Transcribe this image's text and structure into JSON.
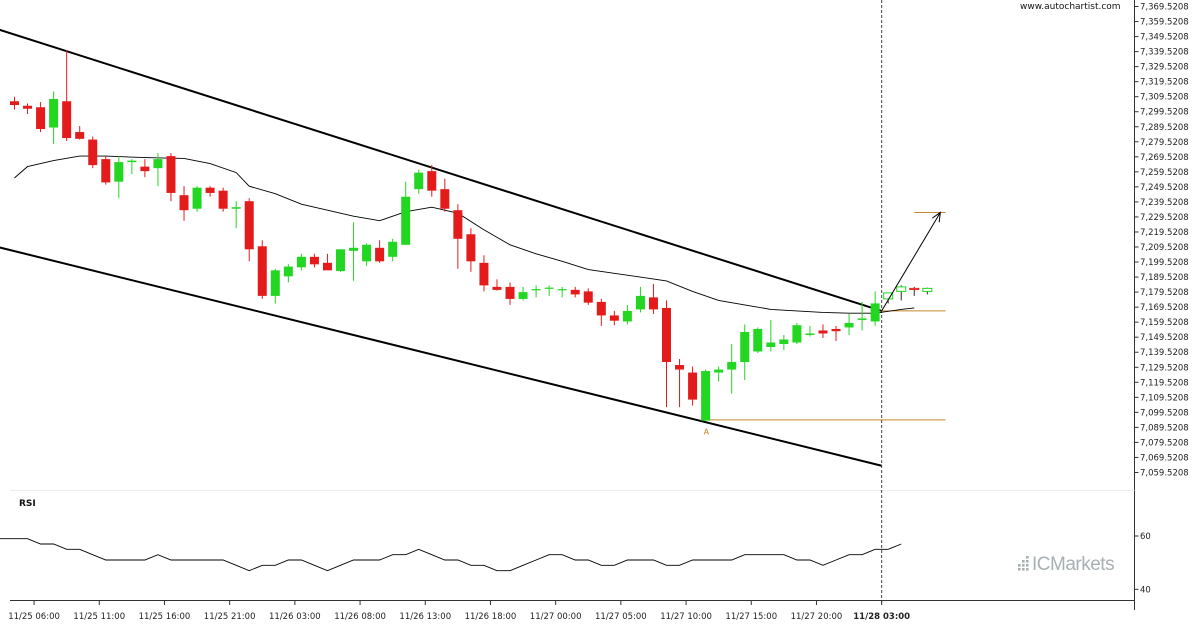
{
  "header": {
    "source": "www.autochartist.com"
  },
  "brand": {
    "name": "ICMarkets"
  },
  "colors": {
    "up": "#22d622",
    "down": "#e41b1b",
    "trend": "#000000",
    "level": "#c8862a",
    "ma": "#000000",
    "rsi": "#000000",
    "brand": "#a8b0b4"
  },
  "chart_data": {
    "type": "candlestick",
    "title": "",
    "ylim": [
      7052.5208,
      7372.5208
    ],
    "ytick_values": [
      7059.5208,
      7069.5208,
      7079.5208,
      7089.5208,
      7099.5208,
      7109.5208,
      7119.5208,
      7129.5208,
      7139.5208,
      7149.5208,
      7159.5208,
      7169.5208,
      7179.5208,
      7189.5208,
      7199.5208,
      7209.5208,
      7219.5208,
      7229.5208,
      7239.5208,
      7249.5208,
      7259.5208,
      7269.5208,
      7279.5208,
      7289.5208,
      7299.5208,
      7309.5208,
      7319.5208,
      7329.5208,
      7339.5208,
      7349.5208,
      7359.5208,
      7369.5208
    ],
    "ytick_labels": [
      "7,059.5208",
      "7,069.5208",
      "7,079.5208",
      "7,089.5208",
      "7,099.5208",
      "7,109.5208",
      "7,119.5208",
      "7,129.5208",
      "7,139.5208",
      "7,149.5208",
      "7,159.5208",
      "7,169.5208",
      "7,179.5208",
      "7,189.5208",
      "7,199.5208",
      "7,209.5208",
      "7,219.5208",
      "7,229.5208",
      "7,239.5208",
      "7,249.5208",
      "7,259.5208",
      "7,269.5208",
      "7,279.5208",
      "7,289.5208",
      "7,299.5208",
      "7,309.5208",
      "7,319.5208",
      "7,329.5208",
      "7,339.5208",
      "7,349.5208",
      "7,359.5208",
      "7,369.5208"
    ],
    "x_ticks": [
      {
        "bar": 1.5,
        "label": "11/25 06:00",
        "bold": false
      },
      {
        "bar": 6.5,
        "label": "11/25 11:00",
        "bold": false
      },
      {
        "bar": 11.5,
        "label": "11/25 16:00",
        "bold": false
      },
      {
        "bar": 16.5,
        "label": "11/25 21:00",
        "bold": false
      },
      {
        "bar": 21.5,
        "label": "11/26 03:00",
        "bold": false
      },
      {
        "bar": 26.5,
        "label": "11/26 08:00",
        "bold": false
      },
      {
        "bar": 31.5,
        "label": "11/26 13:00",
        "bold": false
      },
      {
        "bar": 36.5,
        "label": "11/26 18:00",
        "bold": false
      },
      {
        "bar": 41.5,
        "label": "11/27 00:00",
        "bold": false
      },
      {
        "bar": 46.5,
        "label": "11/27 05:00",
        "bold": false
      },
      {
        "bar": 51.5,
        "label": "11/27 10:00",
        "bold": false
      },
      {
        "bar": 56.5,
        "label": "11/27 15:00",
        "bold": false
      },
      {
        "bar": 61.5,
        "label": "11/27 20:00",
        "bold": false
      },
      {
        "bar": 66.5,
        "label": "11/28 03:00",
        "bold": true
      }
    ],
    "candles": [
      [
        7306.5,
        7309.5,
        7301.0,
        7304.0
      ],
      [
        7303.5,
        7305.0,
        7298.0,
        7301.5
      ],
      [
        7302.5,
        7306.0,
        7286.0,
        7288.0
      ],
      [
        7289.0,
        7313.0,
        7278.0,
        7308.0
      ],
      [
        7306.5,
        7340.5,
        7280.0,
        7282.0
      ],
      [
        7286.0,
        7290.0,
        7281.0,
        7281.5
      ],
      [
        7281.0,
        7283.0,
        7262.0,
        7264.0
      ],
      [
        7268.0,
        7270.0,
        7251.0,
        7252.5
      ],
      [
        7253.0,
        7270.0,
        7242.0,
        7266.0
      ],
      [
        7266.0,
        7268.0,
        7258.0,
        7267.0
      ],
      [
        7263.0,
        7268.0,
        7256.0,
        7260.0
      ],
      [
        7262.0,
        7272.0,
        7250.0,
        7268.0
      ],
      [
        7270.0,
        7272.0,
        7240.0,
        7245.5
      ],
      [
        7244.0,
        7250.0,
        7227.0,
        7234.0
      ],
      [
        7235.0,
        7250.0,
        7233.0,
        7249.0
      ],
      [
        7249.0,
        7250.0,
        7243.0,
        7245.5
      ],
      [
        7247.0,
        7249.0,
        7233.0,
        7235.0
      ],
      [
        7235.0,
        7240.0,
        7222.0,
        7236.0
      ],
      [
        7240.0,
        7242.0,
        7200.0,
        7208.0
      ],
      [
        7210.0,
        7214.0,
        7175.0,
        7177.0
      ],
      [
        7177.0,
        7195.0,
        7172.0,
        7194.0
      ],
      [
        7190.0,
        7198.0,
        7186.0,
        7196.5
      ],
      [
        7196.0,
        7205.0,
        7194.0,
        7203.0
      ],
      [
        7203.0,
        7205.0,
        7196.0,
        7198.0
      ],
      [
        7199.0,
        7205.0,
        7195.0,
        7194.0
      ],
      [
        7193.5,
        7208.0,
        7193.0,
        7208.0
      ],
      [
        7207.0,
        7226.0,
        7187.0,
        7209.0
      ],
      [
        7200.0,
        7212.0,
        7197.0,
        7211.0
      ],
      [
        7209.0,
        7214.0,
        7199.0,
        7200.0
      ],
      [
        7203.0,
        7215.0,
        7200.0,
        7213.0
      ],
      [
        7211.0,
        7253.0,
        7211.0,
        7243.0
      ],
      [
        7248.0,
        7261.0,
        7245.0,
        7259.0
      ],
      [
        7260.0,
        7264.0,
        7243.0,
        7247.0
      ],
      [
        7248.0,
        7255.0,
        7233.0,
        7235.0
      ],
      [
        7234.0,
        7238.0,
        7195.0,
        7215.0
      ],
      [
        7218.0,
        7222.0,
        7193.0,
        7200.0
      ],
      [
        7199.0,
        7204.0,
        7180.0,
        7184.0
      ],
      [
        7183.0,
        7188.0,
        7180.5,
        7181.0
      ],
      [
        7183.0,
        7186.0,
        7171.0,
        7175.0
      ],
      [
        7175.0,
        7183.0,
        7174.0,
        7179.5
      ],
      [
        7181.0,
        7184.0,
        7176.0,
        7181.5
      ],
      [
        7182.0,
        7184.0,
        7177.0,
        7182.5
      ],
      [
        7181.0,
        7183.0,
        7176.0,
        7181.5
      ],
      [
        7181.0,
        7183.0,
        7176.0,
        7178.0
      ],
      [
        7180.0,
        7182.0,
        7171.0,
        7172.5
      ],
      [
        7173.0,
        7175.0,
        7157.0,
        7164.0
      ],
      [
        7164.0,
        7167.0,
        7157.5,
        7160.5
      ],
      [
        7160.0,
        7171.0,
        7158.0,
        7167.0
      ],
      [
        7168.0,
        7183.0,
        7166.0,
        7177.0
      ],
      [
        7176.0,
        7185.0,
        7165.0,
        7168.0
      ],
      [
        7169.0,
        7174.0,
        7103.0,
        7133.0
      ],
      [
        7131.0,
        7135.0,
        7103.0,
        7128.0
      ],
      [
        7126.0,
        7130.0,
        7104.0,
        7108.0
      ],
      [
        7094.0,
        7128.0,
        7094.0,
        7127.0
      ],
      [
        7126.0,
        7130.0,
        7120.0,
        7128.0
      ],
      [
        7128.0,
        7145.0,
        7112.0,
        7133.0
      ],
      [
        7133.0,
        7158.0,
        7121.0,
        7153.0
      ],
      [
        7140.0,
        7156.0,
        7139.0,
        7155.0
      ],
      [
        7143.0,
        7161.0,
        7140.0,
        7146.0
      ],
      [
        7145.0,
        7151.0,
        7141.0,
        7148.0
      ],
      [
        7146.0,
        7159.0,
        7145.0,
        7157.5
      ],
      [
        7151.0,
        7157.0,
        7150.0,
        7152.0
      ],
      [
        7154.0,
        7158.0,
        7149.0,
        7152.0
      ],
      [
        7155.0,
        7157.0,
        7147.0,
        7153.5
      ],
      [
        7156.0,
        7165.0,
        7151.0,
        7159.0
      ],
      [
        7161.0,
        7173.0,
        7154.0,
        7162.0
      ],
      [
        7160.0,
        7180.0,
        7157.0,
        7172.0
      ],
      [
        7175.0,
        7178.0,
        7172.0,
        7179.0
      ],
      [
        7180.0,
        7184.0,
        7174.0,
        7183.0
      ],
      [
        7182.0,
        7183.0,
        7177.0,
        7181.5
      ],
      [
        7180.0,
        7182.5,
        7178.0,
        7182.0
      ]
    ],
    "forecast_from": 67,
    "ma": [
      [
        0,
        7255.5
      ],
      [
        1,
        7263
      ],
      [
        3,
        7267
      ],
      [
        5,
        7270
      ],
      [
        7,
        7270
      ],
      [
        10,
        7269
      ],
      [
        13,
        7268.5
      ],
      [
        15,
        7265
      ],
      [
        17,
        7259
      ],
      [
        18,
        7250
      ],
      [
        20,
        7245
      ],
      [
        22,
        7238
      ],
      [
        24,
        7234
      ],
      [
        26,
        7230
      ],
      [
        28,
        7227
      ],
      [
        30,
        7233
      ],
      [
        32,
        7236
      ],
      [
        34,
        7232
      ],
      [
        36,
        7221
      ],
      [
        38,
        7211
      ],
      [
        40,
        7205
      ],
      [
        42,
        7200
      ],
      [
        44,
        7194.5
      ],
      [
        46,
        7192
      ],
      [
        48,
        7189.5
      ],
      [
        50,
        7187
      ],
      [
        52,
        7180
      ],
      [
        54,
        7174
      ],
      [
        56,
        7171
      ],
      [
        58,
        7168
      ],
      [
        60,
        7167
      ],
      [
        62,
        7166
      ],
      [
        64,
        7165.5
      ],
      [
        66,
        7165.5
      ],
      [
        68,
        7168
      ],
      [
        69,
        7169
      ]
    ],
    "trend_lines": [
      {
        "from": [
          -1.5,
          7355
        ],
        "to": [
          66.5,
          7167
        ],
        "name": "upper"
      },
      {
        "from": [
          -1.5,
          7210
        ],
        "to": [
          66.5,
          7064
        ],
        "name": "lower"
      }
    ],
    "levels": [
      {
        "value": 7094.5,
        "from": 53.2,
        "to": 71.4
      },
      {
        "value": 7167.0,
        "from": 66.5,
        "to": 71.4
      },
      {
        "value": 7232.5,
        "from": 69.0,
        "to": 71.4
      }
    ],
    "arrow": {
      "from": [
        66.5,
        7167.0
      ],
      "to": [
        71.0,
        7232.5
      ]
    },
    "point_marker": {
      "label": "A",
      "bar": 53,
      "value": 7094.0
    },
    "vertical_line_bar": 66.5,
    "rsi": {
      "title": "RSI",
      "levels": [
        60,
        40
      ],
      "level_labels": [
        "60",
        "40"
      ],
      "ylim": [
        36,
        66
      ],
      "points": [
        [
          -1.5,
          59
        ],
        [
          0,
          59
        ],
        [
          1,
          59
        ],
        [
          2,
          57
        ],
        [
          3,
          57
        ],
        [
          4,
          55
        ],
        [
          5,
          55
        ],
        [
          6,
          53
        ],
        [
          7,
          51
        ],
        [
          8,
          51
        ],
        [
          9,
          51
        ],
        [
          10,
          51
        ],
        [
          11,
          53
        ],
        [
          12,
          51
        ],
        [
          13,
          51
        ],
        [
          14,
          51
        ],
        [
          15,
          51
        ],
        [
          16,
          51
        ],
        [
          17,
          49
        ],
        [
          18,
          47
        ],
        [
          19,
          49
        ],
        [
          20,
          49
        ],
        [
          21,
          51
        ],
        [
          22,
          51
        ],
        [
          23,
          49
        ],
        [
          24,
          47
        ],
        [
          25,
          49
        ],
        [
          26,
          51
        ],
        [
          27,
          51
        ],
        [
          28,
          51
        ],
        [
          29,
          53
        ],
        [
          30,
          53
        ],
        [
          31,
          55
        ],
        [
          32,
          53
        ],
        [
          33,
          51
        ],
        [
          34,
          51
        ],
        [
          35,
          49
        ],
        [
          36,
          49
        ],
        [
          37,
          47
        ],
        [
          38,
          47
        ],
        [
          39,
          49
        ],
        [
          40,
          51
        ],
        [
          41,
          53
        ],
        [
          42,
          53
        ],
        [
          43,
          51
        ],
        [
          44,
          51
        ],
        [
          45,
          49
        ],
        [
          46,
          49
        ],
        [
          47,
          51
        ],
        [
          48,
          51
        ],
        [
          49,
          51
        ],
        [
          50,
          49
        ],
        [
          51,
          49
        ],
        [
          52,
          51
        ],
        [
          53,
          51
        ],
        [
          54,
          51
        ],
        [
          55,
          51
        ],
        [
          56,
          53
        ],
        [
          57,
          53
        ],
        [
          58,
          53
        ],
        [
          59,
          53
        ],
        [
          60,
          51
        ],
        [
          61,
          51
        ],
        [
          62,
          49
        ],
        [
          63,
          51
        ],
        [
          64,
          53
        ],
        [
          65,
          53
        ],
        [
          66,
          55
        ],
        [
          67,
          55
        ],
        [
          68,
          57
        ]
      ]
    }
  }
}
